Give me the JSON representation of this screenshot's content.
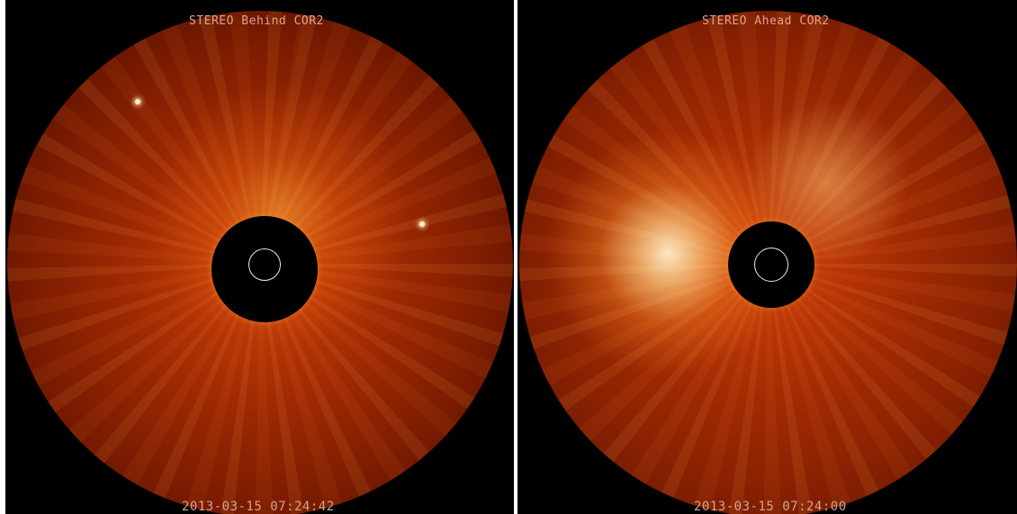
{
  "panels": [
    {
      "instrument": "STEREO Behind COR2",
      "timestamp": "2013-03-15 07:24:42"
    },
    {
      "instrument": "STEREO Ahead COR2",
      "timestamp": "2013-03-15 07:24:00"
    }
  ],
  "colors": {
    "background": "#000000",
    "corona_base": "#9a2703",
    "cme_highlight": "#ffd9a0",
    "sun_limb_circle": "#e8e8e8"
  }
}
